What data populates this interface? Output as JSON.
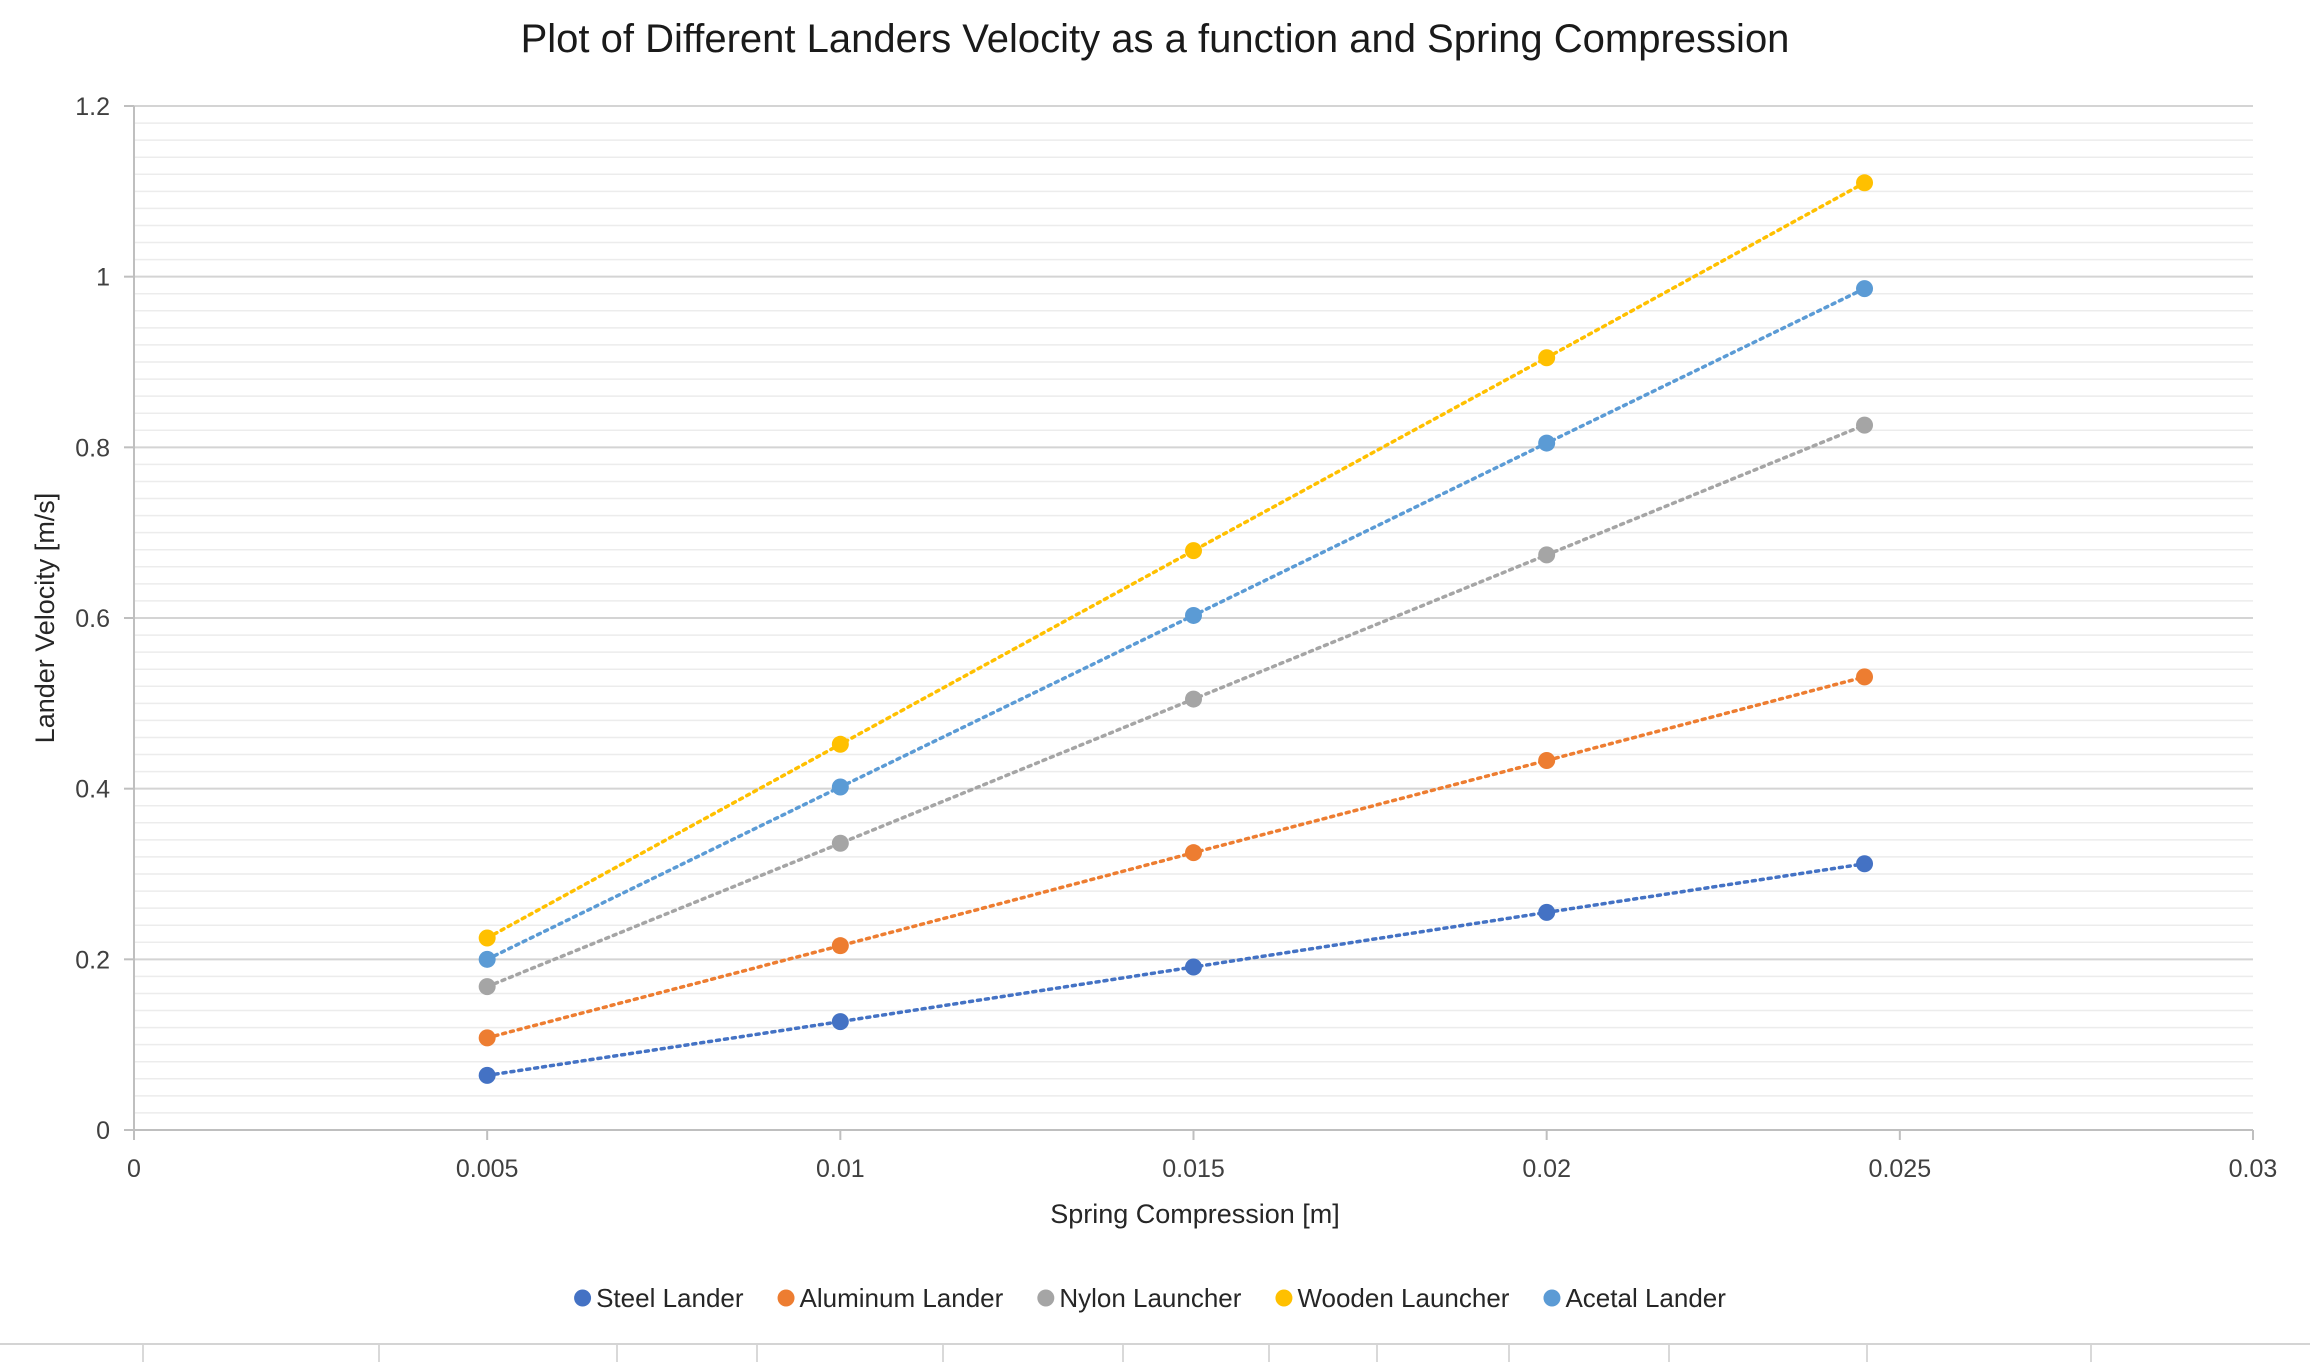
{
  "chart_data": {
    "type": "scatter",
    "title": "Plot of Different Landers Velocity as a function and Spring Compression",
    "xlabel": "Spring Compression [m]",
    "ylabel": "Lander Velocity [m/s]",
    "xlim": [
      0,
      0.03
    ],
    "ylim": [
      0,
      1.2
    ],
    "x_ticks": [
      "0",
      "0.005",
      "0.01",
      "0.015",
      "0.02",
      "0.025",
      "0.03"
    ],
    "y_ticks": [
      "0",
      "0.2",
      "0.4",
      "0.6",
      "0.8",
      "1",
      "1.2"
    ],
    "grid": true,
    "legend_position": "bottom",
    "line_style": "dotted",
    "x": [
      0.005,
      0.01,
      0.015,
      0.02,
      0.0245
    ],
    "series": [
      {
        "name": "Steel Lander",
        "color": "#4472C4",
        "values": [
          0.064,
          0.127,
          0.191,
          0.255,
          0.312
        ]
      },
      {
        "name": "Aluminum Lander",
        "color": "#ED7D31",
        "values": [
          0.108,
          0.216,
          0.325,
          0.433,
          0.531
        ]
      },
      {
        "name": "Nylon Launcher",
        "color": "#A5A5A5",
        "values": [
          0.168,
          0.336,
          0.505,
          0.674,
          0.826
        ]
      },
      {
        "name": "Wooden Launcher",
        "color": "#FFC000",
        "values": [
          0.225,
          0.452,
          0.679,
          0.905,
          1.11
        ]
      },
      {
        "name": "Acetal Lander",
        "color": "#5B9BD5",
        "values": [
          0.2,
          0.402,
          0.603,
          0.805,
          0.986
        ]
      }
    ]
  }
}
